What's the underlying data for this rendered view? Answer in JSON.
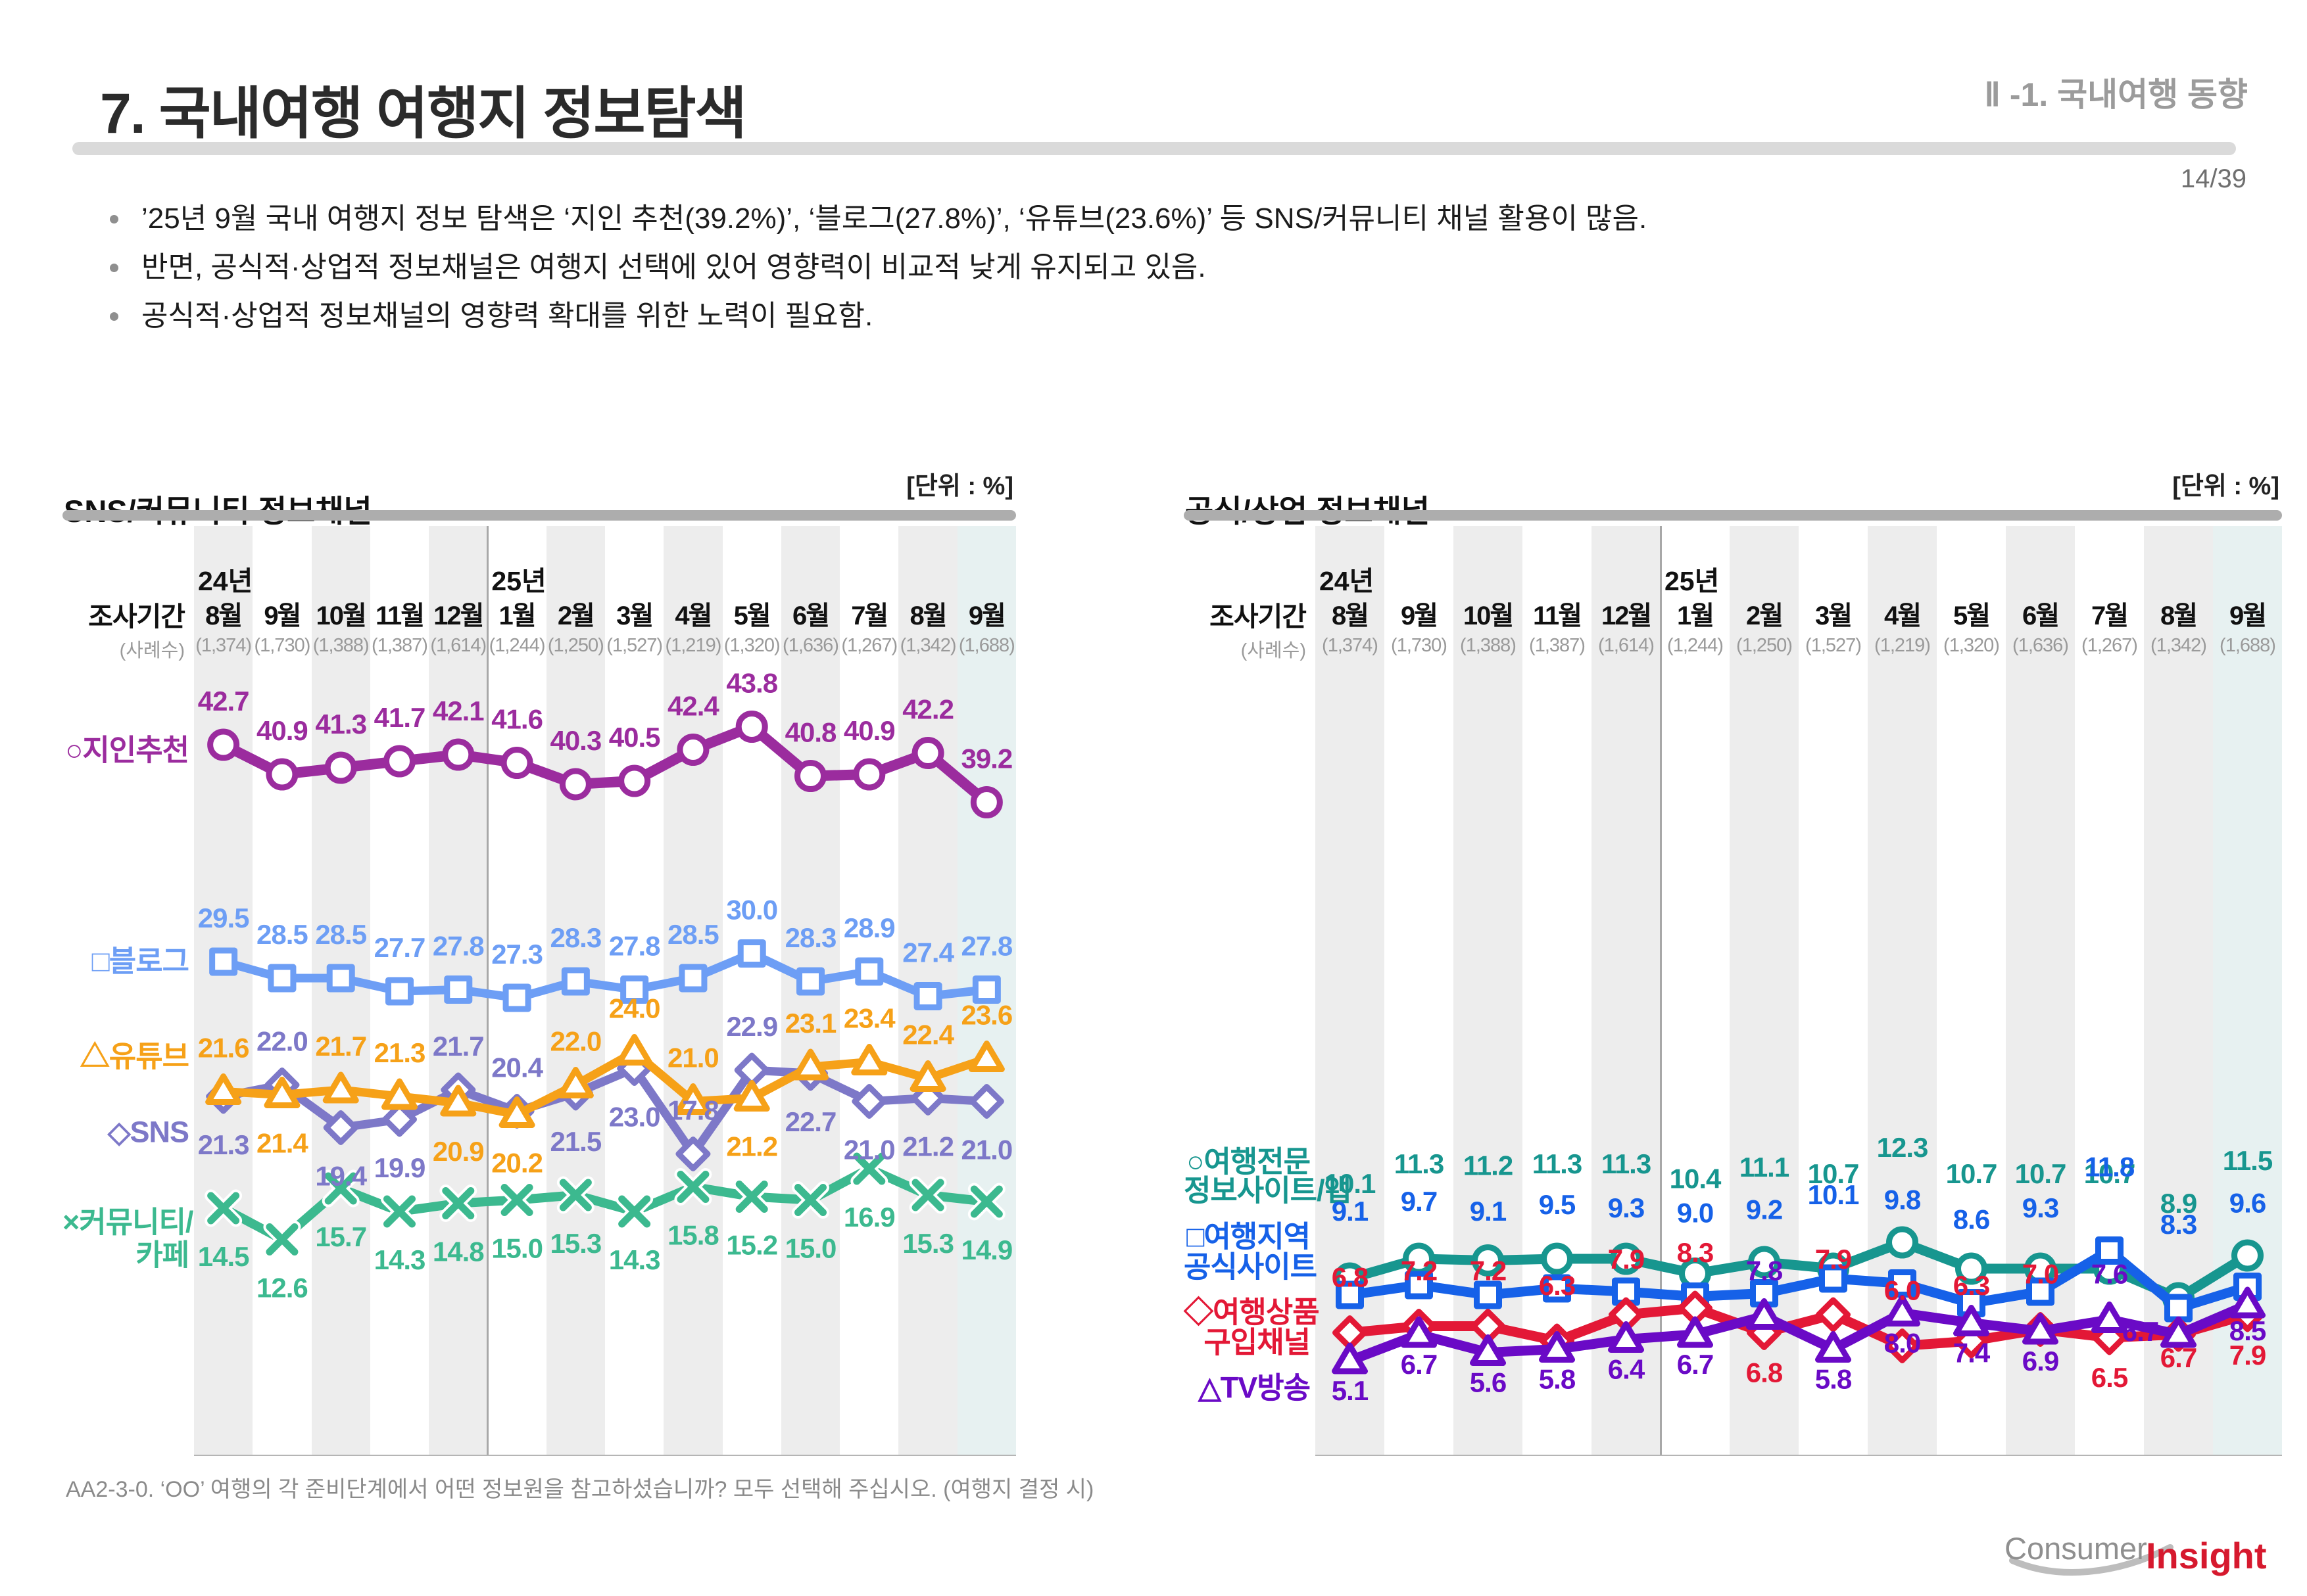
{
  "page": {
    "title": "7. 국내여행 여행지 정보탐색",
    "section": "Ⅱ -1. 국내여행 동향",
    "page_number": "14/39",
    "bullets": [
      "’25년 9월 국내 여행지 정보 탐색은 ‘지인 추천(39.2%)’, ‘블로그(27.8%)’, ‘유튜브(23.6%)’ 등 SNS/커뮤니티 채널 활용이 많음.",
      "반면, 공식적·상업적 정보채널은 여행지 선택에 있어 영향력이 비교적 낮게 유지되고 있음.",
      "공식적·상업적 정보채널의 영향력 확대를 위한 노력이 필요함."
    ],
    "footnote": "AA2-3-0. ‘OO’ 여행의 각 준비단계에서 어떤 정보원을 참고하셨습니까? 모두 선택해 주십시오. (여행지 결정 시)",
    "logo_consumer": "Consumer",
    "logo_insight": "Insight"
  },
  "months": {
    "survey_label": "조사기간",
    "sample_label": "(사례수)",
    "year_2024": "24년",
    "year_2025": "25년",
    "labels": [
      "8월",
      "9월",
      "10월",
      "11월",
      "12월",
      "1월",
      "2월",
      "3월",
      "4월",
      "5월",
      "6월",
      "7월",
      "8월",
      "9월"
    ],
    "samples": [
      "(1,374)",
      "(1,730)",
      "(1,388)",
      "(1,387)",
      "(1,614)",
      "(1,244)",
      "(1,250)",
      "(1,527)",
      "(1,219)",
      "(1,320)",
      "(1,636)",
      "(1,267)",
      "(1,342)",
      "(1,688)"
    ]
  },
  "chart_data": [
    {
      "type": "line",
      "title": "SNS/커뮤니티 정보채널",
      "unit_label": "[단위 : %]",
      "grid": false,
      "legend_position": "left",
      "ylim": [
        11,
        46
      ],
      "categories": [
        "8월",
        "9월",
        "10월",
        "11월",
        "12월",
        "1월",
        "2월",
        "3월",
        "4월",
        "5월",
        "6월",
        "7월",
        "8월",
        "9월"
      ],
      "series": [
        {
          "name": "지인추천",
          "legend_lines": [
            "○지인추천"
          ],
          "marker": "circle",
          "color": "#9b2c9e",
          "values": [
            42.7,
            40.9,
            41.3,
            41.7,
            42.1,
            41.6,
            40.3,
            40.5,
            42.4,
            43.8,
            40.8,
            40.9,
            42.2,
            39.2
          ]
        },
        {
          "name": "블로그",
          "legend_lines": [
            "□블로그"
          ],
          "marker": "square",
          "color": "#6d9ef5",
          "values": [
            29.5,
            28.5,
            28.5,
            27.7,
            27.8,
            27.3,
            28.3,
            27.8,
            28.5,
            30.0,
            28.3,
            28.9,
            27.4,
            27.8
          ]
        },
        {
          "name": "유튜브",
          "legend_lines": [
            "△유튜브"
          ],
          "marker": "triangle",
          "color": "#f6a118",
          "values": [
            21.6,
            21.4,
            21.7,
            21.3,
            20.9,
            20.2,
            22.0,
            24.0,
            21.0,
            21.2,
            23.1,
            23.4,
            22.4,
            23.6
          ]
        },
        {
          "name": "SNS",
          "legend_lines": [
            "◇SNS"
          ],
          "marker": "diamond",
          "color": "#7d78c8",
          "values": [
            21.3,
            22.0,
            19.4,
            19.9,
            21.7,
            20.4,
            21.5,
            23.0,
            17.8,
            22.9,
            22.7,
            21.0,
            21.2,
            21.0
          ]
        },
        {
          "name": "커뮤니티/카페",
          "legend_lines": [
            "×커뮤니티/",
            "카페"
          ],
          "marker": "x",
          "color": "#3cb98f",
          "values": [
            14.5,
            12.6,
            15.7,
            14.3,
            14.8,
            15.0,
            15.3,
            14.3,
            15.8,
            15.2,
            15.0,
            16.9,
            15.3,
            14.9
          ]
        }
      ]
    },
    {
      "type": "line",
      "title": "공식/상업 정보채널",
      "unit_label": "[단위 : %]",
      "grid": false,
      "legend_position": "left",
      "ylim": [
        4,
        13
      ],
      "categories": [
        "8월",
        "9월",
        "10월",
        "11월",
        "12월",
        "1월",
        "2월",
        "3월",
        "4월",
        "5월",
        "6월",
        "7월",
        "8월",
        "9월"
      ],
      "series": [
        {
          "name": "여행전문 정보사이트/앱",
          "legend_lines": [
            "○여행전문",
            "정보사이트/앱"
          ],
          "marker": "circle",
          "color": "#17968f",
          "values": [
            10.1,
            11.3,
            11.2,
            11.3,
            11.3,
            10.4,
            11.1,
            10.7,
            12.3,
            10.7,
            10.7,
            10.7,
            8.9,
            11.5
          ]
        },
        {
          "name": "여행지역 공식사이트",
          "legend_lines": [
            "□여행지역",
            "공식사이트"
          ],
          "marker": "square",
          "color": "#1661e8",
          "values": [
            9.1,
            9.7,
            9.1,
            9.5,
            9.3,
            9.0,
            9.2,
            10.1,
            9.8,
            8.6,
            9.3,
            11.8,
            8.3,
            9.6
          ]
        },
        {
          "name": "여행상품 구입채널",
          "legend_lines": [
            "◇여행상품",
            "구입채널"
          ],
          "marker": "diamond",
          "color": "#e31836",
          "values": [
            6.8,
            7.2,
            7.2,
            6.3,
            7.9,
            8.3,
            6.8,
            7.9,
            6.0,
            6.3,
            7.0,
            6.5,
            6.7,
            7.9
          ]
        },
        {
          "name": "TV방송",
          "legend_lines": [
            "△TV방송"
          ],
          "marker": "triangle",
          "color": "#6a0ac6",
          "values": [
            5.1,
            6.7,
            5.6,
            5.8,
            6.4,
            6.7,
            7.8,
            5.8,
            8.0,
            7.4,
            6.9,
            7.6,
            6.7,
            8.5
          ]
        }
      ]
    }
  ]
}
